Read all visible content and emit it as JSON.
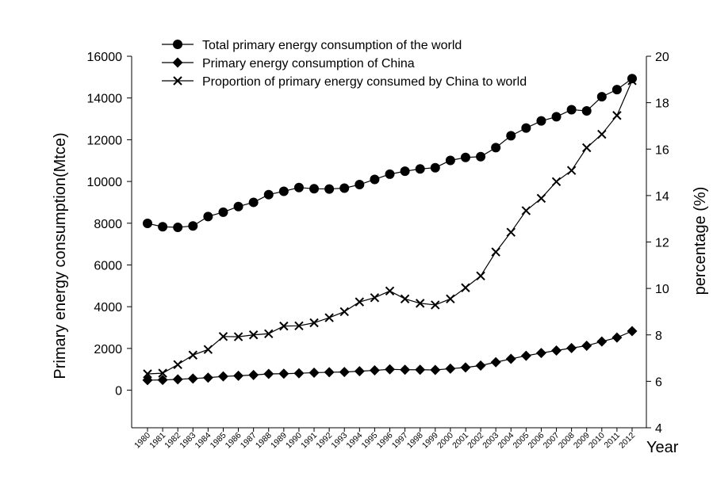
{
  "chart_data": {
    "type": "line",
    "title": "",
    "xlabel": "Year",
    "ylabel": "Primary energy consumption(Mtce)",
    "y2label": "percentage (%)",
    "ylim": [
      -1800,
      16000
    ],
    "y2lim": [
      4,
      20
    ],
    "yticks": [
      0,
      2000,
      4000,
      6000,
      8000,
      10000,
      12000,
      14000,
      16000
    ],
    "y2ticks": [
      4,
      6,
      8,
      10,
      12,
      14,
      16,
      18,
      20
    ],
    "grid": false,
    "legend_position": "top-left",
    "categories": [
      "1980",
      "1981",
      "1982",
      "1983",
      "1984",
      "1985",
      "1986",
      "1987",
      "1988",
      "1989",
      "1990",
      "1991",
      "1992",
      "1993",
      "1994",
      "1995",
      "1996",
      "1997",
      "1998",
      "1999",
      "2000",
      "2001",
      "2002",
      "2003",
      "2004",
      "2005",
      "2006",
      "2007",
      "2008",
      "2009",
      "2010",
      "2011",
      "2012"
    ],
    "series": [
      {
        "name": "Total primary energy consumption of the world",
        "axis": "left",
        "marker": "circle",
        "values": [
          7990,
          7830,
          7800,
          7870,
          8320,
          8530,
          8800,
          9000,
          9370,
          9530,
          9710,
          9650,
          9640,
          9680,
          9850,
          10100,
          10350,
          10490,
          10600,
          10660,
          11010,
          11150,
          11190,
          11620,
          12190,
          12560,
          12900,
          13100,
          13440,
          13380,
          14060,
          14400,
          14930
        ]
      },
      {
        "name": "Primary energy consumption of China",
        "axis": "left",
        "marker": "diamond",
        "values": [
          480,
          490,
          520,
          560,
          600,
          660,
          690,
          730,
          780,
          790,
          810,
          840,
          860,
          870,
          910,
          950,
          1000,
          980,
          980,
          970,
          1030,
          1090,
          1180,
          1340,
          1500,
          1650,
          1780,
          1900,
          2020,
          2130,
          2330,
          2520,
          2830
        ]
      },
      {
        "name": "Proportion of primary energy consumed by China to world",
        "axis": "right",
        "marker": "x",
        "values": [
          6.32,
          6.35,
          6.72,
          7.13,
          7.37,
          7.93,
          7.92,
          8.0,
          8.05,
          8.38,
          8.39,
          8.52,
          8.74,
          9.0,
          9.42,
          9.6,
          9.89,
          9.55,
          9.36,
          9.29,
          9.55,
          10.03,
          10.54,
          11.57,
          12.42,
          13.35,
          13.88,
          14.6,
          15.08,
          16.06,
          16.64,
          17.45,
          18.95
        ]
      }
    ]
  }
}
